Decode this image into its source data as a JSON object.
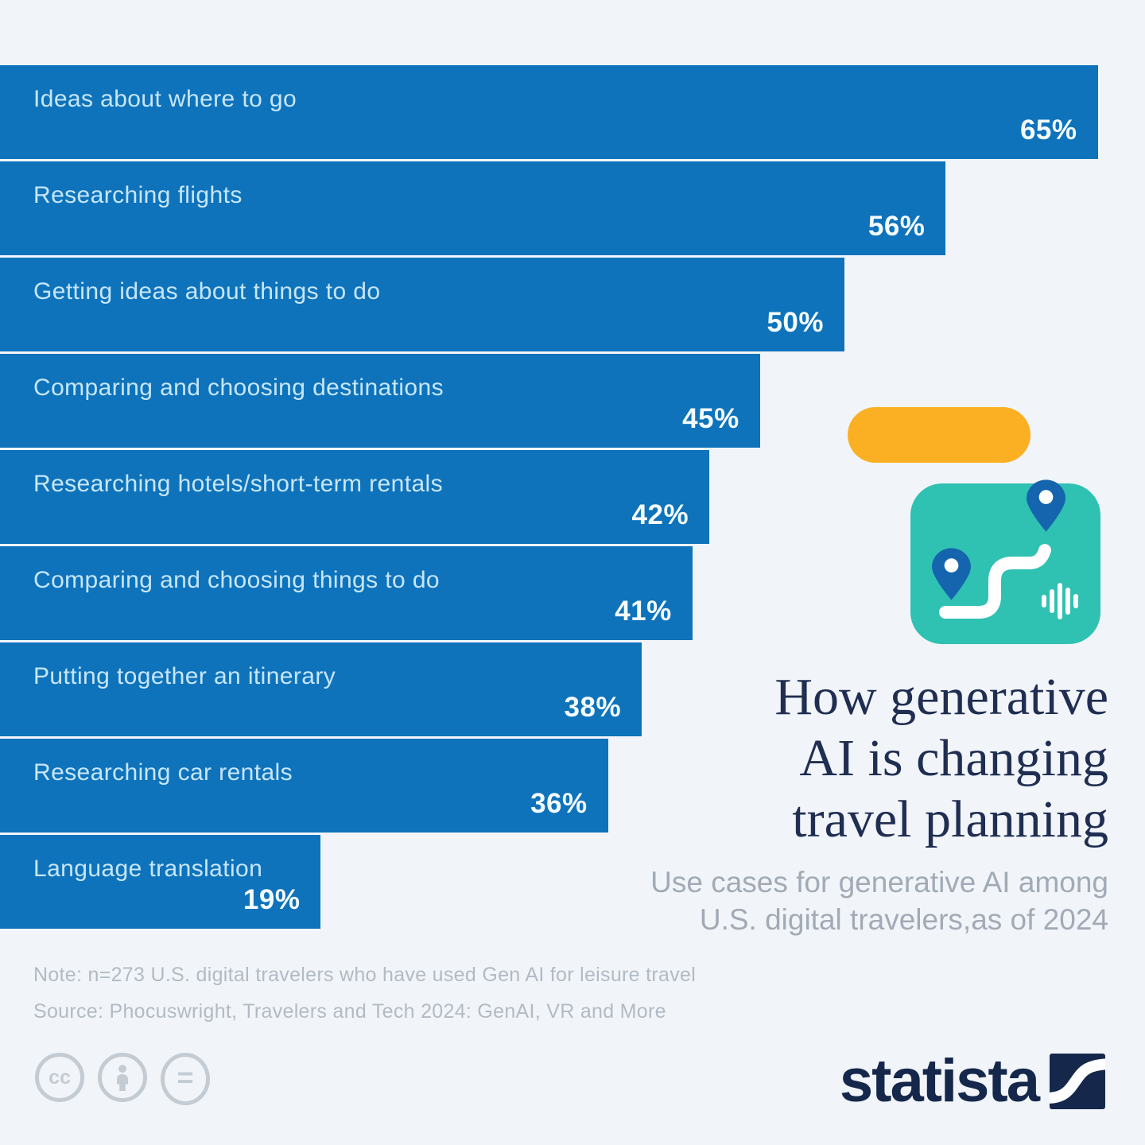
{
  "chart_data": {
    "type": "bar",
    "orientation": "horizontal",
    "categories": [
      "Ideas about where to go",
      "Researching flights",
      "Getting ideas about things to do",
      "Comparing and choosing destinations",
      "Researching hotels/short-term rentals",
      "Comparing and choosing things to do",
      "Putting together an itinerary",
      "Researching car rentals",
      "Language translation"
    ],
    "values": [
      65,
      56,
      50,
      45,
      42,
      41,
      38,
      36,
      19
    ],
    "unit": "%",
    "xlim": [
      0,
      67.8
    ],
    "grid": false,
    "legend": "none",
    "bar_color": "#0e73bb",
    "category_label_color": "#c7e6f9",
    "value_label_color": "#f4fbff"
  },
  "hero": {
    "title_lines": [
      "How generative",
      "AI is changing",
      "travel planning"
    ],
    "subtitle_lines": [
      "Use cases for generative AI among",
      "U.S. digital travelers,as of 2024"
    ],
    "illustration": {
      "pill_color": "#fbb024",
      "map_color": "#2fc1b2",
      "pin_color": "#1465ae",
      "route_color": "#ffffff"
    }
  },
  "footer": {
    "note": "Note: n=273 U.S. digital travelers who have used Gen AI for leisure travel",
    "source": "Source: Phocuswright, Travelers and Tech 2024: GenAI, VR and More",
    "license": {
      "cc_label": "cc",
      "equals_label": "="
    },
    "brand": "statista",
    "brand_color": "#15284b"
  },
  "background_color": "#f1f5f9"
}
